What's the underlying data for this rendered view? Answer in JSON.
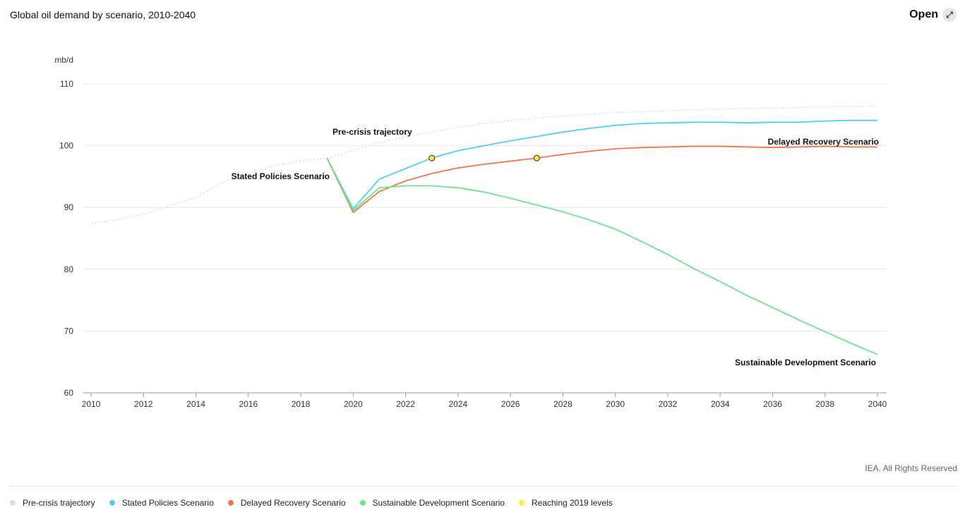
{
  "header": {
    "title": "Global oil demand by scenario, 2010-2040",
    "open_label": "Open",
    "open_icon": "expand-icon"
  },
  "footer": {
    "copyright": "IEA. All Rights Reserved"
  },
  "chart_data": {
    "type": "line",
    "title": "Global oil demand by scenario, 2010-2040",
    "ylabel": "mb/d",
    "xlabel": "",
    "xlim": [
      2010,
      2040
    ],
    "ylim": [
      60,
      110
    ],
    "x_ticks": [
      2010,
      2012,
      2014,
      2016,
      2018,
      2020,
      2022,
      2024,
      2026,
      2028,
      2030,
      2032,
      2034,
      2036,
      2038,
      2040
    ],
    "y_ticks": [
      60,
      70,
      80,
      90,
      100,
      110
    ],
    "grid": true,
    "legend_position": "bottom",
    "series": [
      {
        "name": "Pre-crisis trajectory",
        "color": "#dcdcdc",
        "style": "dotted",
        "label": "Pre-crisis trajectory",
        "x": [
          2010,
          2011,
          2012,
          2013,
          2014,
          2015,
          2016,
          2017,
          2018,
          2019,
          2020,
          2021,
          2022,
          2023,
          2024,
          2025,
          2026,
          2027,
          2028,
          2029,
          2030,
          2031,
          2032,
          2033,
          2034,
          2035,
          2036,
          2037,
          2038,
          2039,
          2040
        ],
        "values": [
          87.4,
          88.0,
          88.9,
          90.3,
          91.6,
          94.0,
          95.5,
          96.8,
          97.5,
          98.0,
          99.2,
          100.5,
          101.4,
          102.2,
          103.0,
          103.6,
          104.1,
          104.5,
          104.8,
          105.1,
          105.4,
          105.5,
          105.6,
          105.8,
          105.9,
          106.0,
          106.1,
          106.2,
          106.3,
          106.3,
          106.4
        ]
      },
      {
        "name": "Stated Policies Scenario",
        "color": "#4fd0f1",
        "style": "solid",
        "label": "Stated Policies Scenario",
        "x": [
          2019,
          2020,
          2021,
          2022,
          2023,
          2024,
          2025,
          2026,
          2027,
          2028,
          2029,
          2030,
          2031,
          2032,
          2033,
          2034,
          2035,
          2036,
          2037,
          2038,
          2039,
          2040
        ],
        "values": [
          98.0,
          89.8,
          94.6,
          96.3,
          98.0,
          99.2,
          100.0,
          100.8,
          101.5,
          102.2,
          102.8,
          103.3,
          103.6,
          103.7,
          103.8,
          103.8,
          103.7,
          103.8,
          103.8,
          104.0,
          104.1,
          104.1
        ]
      },
      {
        "name": "Delayed Recovery Scenario",
        "color": "#f37247",
        "style": "solid",
        "label": "Delayed Recovery Scenario",
        "x": [
          2019,
          2020,
          2021,
          2022,
          2023,
          2024,
          2025,
          2026,
          2027,
          2028,
          2029,
          2030,
          2031,
          2032,
          2033,
          2034,
          2035,
          2036,
          2037,
          2038,
          2039,
          2040
        ],
        "values": [
          98.0,
          89.2,
          92.6,
          94.3,
          95.5,
          96.4,
          97.0,
          97.5,
          98.0,
          98.6,
          99.1,
          99.5,
          99.7,
          99.8,
          99.9,
          99.9,
          99.8,
          99.7,
          99.8,
          99.9,
          99.8,
          99.8
        ]
      },
      {
        "name": "Sustainable Development Scenario",
        "color": "#6be587",
        "style": "solid",
        "label": "Sustainable Development Scenario",
        "x": [
          2019,
          2020,
          2021,
          2022,
          2023,
          2024,
          2025,
          2026,
          2027,
          2028,
          2029,
          2030,
          2031,
          2032,
          2033,
          2034,
          2035,
          2036,
          2037,
          2038,
          2039,
          2040
        ],
        "values": [
          98.0,
          89.5,
          93.2,
          93.5,
          93.5,
          93.2,
          92.5,
          91.5,
          90.4,
          89.3,
          88.0,
          86.5,
          84.5,
          82.4,
          80.1,
          78.0,
          75.8,
          73.8,
          71.8,
          69.9,
          68.0,
          66.2
        ]
      }
    ],
    "markers": {
      "name": "Reaching 2019 levels",
      "color": "#ffeb3b",
      "points": [
        {
          "x": 2023,
          "y": 98.0,
          "series": "Stated Policies Scenario"
        },
        {
          "x": 2027,
          "y": 98.0,
          "series": "Delayed Recovery Scenario"
        }
      ]
    },
    "legend": [
      {
        "label": "Pre-crisis trajectory",
        "color": "#dcdcdc"
      },
      {
        "label": "Stated Policies Scenario",
        "color": "#4fd0f1"
      },
      {
        "label": "Delayed Recovery Scenario",
        "color": "#f37247"
      },
      {
        "label": "Sustainable Development Scenario",
        "color": "#6be587"
      },
      {
        "label": "Reaching 2019 levels",
        "color": "#ffeb3b"
      }
    ]
  }
}
